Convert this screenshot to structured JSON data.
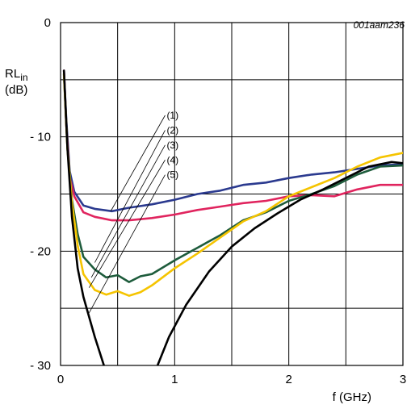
{
  "chart_data": {
    "type": "line",
    "figure_code": "001aam236",
    "ylabel_main": "RL",
    "ylabel_sub": "in",
    "yunit": "(dB)",
    "xlabel": "f (GHz)",
    "xlim": [
      0,
      3
    ],
    "ylim": [
      -30,
      0
    ],
    "x_ticks": [
      0,
      0.5,
      1,
      1.5,
      2,
      2.5,
      3
    ],
    "x_tick_labels": [
      "0",
      "",
      "1",
      "",
      "2",
      "",
      "3"
    ],
    "y_ticks": [
      0,
      -5,
      -10,
      -15,
      -20,
      -25,
      -30
    ],
    "y_tick_labels": [
      "0",
      "",
      "- 10",
      "",
      "- 20",
      "",
      "- 30"
    ],
    "grid": true,
    "series": [
      {
        "name": "(1)",
        "color": "#2b3a8f",
        "x": [
          0.03,
          0.05,
          0.08,
          0.12,
          0.2,
          0.3,
          0.45,
          0.6,
          0.8,
          1.0,
          1.2,
          1.4,
          1.6,
          1.8,
          2.0,
          2.2,
          2.4,
          2.6,
          2.8,
          3.0
        ],
        "y": [
          -4.2,
          -8.5,
          -13.0,
          -14.8,
          -16.0,
          -16.3,
          -16.5,
          -16.2,
          -15.9,
          -15.5,
          -15.0,
          -14.7,
          -14.2,
          -14.0,
          -13.6,
          -13.3,
          -13.1,
          -12.8,
          -12.5,
          -12.4
        ]
      },
      {
        "name": "(2)",
        "color": "#e0245e",
        "x": [
          0.03,
          0.05,
          0.08,
          0.12,
          0.2,
          0.3,
          0.45,
          0.6,
          0.8,
          1.0,
          1.2,
          1.4,
          1.6,
          1.8,
          2.0,
          2.2,
          2.4,
          2.6,
          2.8,
          3.0
        ],
        "y": [
          -4.2,
          -9.0,
          -13.5,
          -15.2,
          -16.6,
          -17.0,
          -17.3,
          -17.3,
          -17.1,
          -16.8,
          -16.4,
          -16.1,
          -15.8,
          -15.6,
          -15.2,
          -15.1,
          -15.2,
          -14.6,
          -14.2,
          -14.2
        ]
      },
      {
        "name": "(3)",
        "color": "#1e5c3c",
        "x": [
          0.03,
          0.06,
          0.1,
          0.15,
          0.2,
          0.3,
          0.4,
          0.5,
          0.6,
          0.7,
          0.8,
          1.0,
          1.2,
          1.4,
          1.6,
          1.8,
          2.0,
          2.2,
          2.4,
          2.6,
          2.8,
          3.0
        ],
        "y": [
          -4.5,
          -11.0,
          -15.5,
          -18.5,
          -20.5,
          -21.6,
          -22.3,
          -22.1,
          -22.7,
          -22.2,
          -22.0,
          -20.8,
          -19.7,
          -18.6,
          -17.3,
          -16.6,
          -15.6,
          -15.0,
          -14.3,
          -13.3,
          -12.6,
          -12.5
        ]
      },
      {
        "name": "(4)",
        "color": "#f5c400",
        "x": [
          0.03,
          0.06,
          0.1,
          0.15,
          0.2,
          0.3,
          0.4,
          0.5,
          0.6,
          0.7,
          0.8,
          1.0,
          1.2,
          1.4,
          1.6,
          1.8,
          2.0,
          2.2,
          2.4,
          2.6,
          2.8,
          3.0
        ],
        "y": [
          -4.5,
          -11.0,
          -15.8,
          -19.5,
          -22.0,
          -23.4,
          -23.8,
          -23.5,
          -23.9,
          -23.6,
          -23.0,
          -21.5,
          -20.2,
          -18.8,
          -17.4,
          -16.5,
          -15.2,
          -14.4,
          -13.6,
          -12.6,
          -11.8,
          -11.4
        ]
      },
      {
        "name": "(5)",
        "color": "#000000",
        "x": [
          0.03,
          0.06,
          0.1,
          0.15,
          0.2,
          0.3,
          0.38
        ],
        "y": [
          -4.2,
          -11.0,
          -17.0,
          -21.5,
          -24.0,
          -27.5,
          -30.0
        ]
      },
      {
        "name": "",
        "color": "#000000",
        "x": [
          0.85,
          0.95,
          1.1,
          1.3,
          1.5,
          1.7,
          1.9,
          2.1,
          2.3,
          2.5,
          2.7,
          2.9,
          3.0
        ],
        "y": [
          -30.0,
          -27.5,
          -24.7,
          -21.8,
          -19.6,
          -18.0,
          -16.7,
          -15.5,
          -14.6,
          -13.6,
          -12.6,
          -12.2,
          -12.3
        ]
      }
    ],
    "callouts": [
      {
        "label": "(1)",
        "tx": 0.93,
        "ty": -8.4,
        "px": 0.44,
        "py": -16.5
      },
      {
        "label": "(2)",
        "tx": 0.93,
        "ty": -9.7,
        "px": 0.3,
        "py": -21.0
      },
      {
        "label": "(3)",
        "tx": 0.93,
        "ty": -11.0,
        "px": 0.27,
        "py": -22.3
      },
      {
        "label": "(4)",
        "tx": 0.93,
        "ty": -12.3,
        "px": 0.25,
        "py": -23.2
      },
      {
        "label": "(5)",
        "tx": 0.93,
        "ty": -13.6,
        "px": 0.25,
        "py": -25.4
      }
    ]
  }
}
